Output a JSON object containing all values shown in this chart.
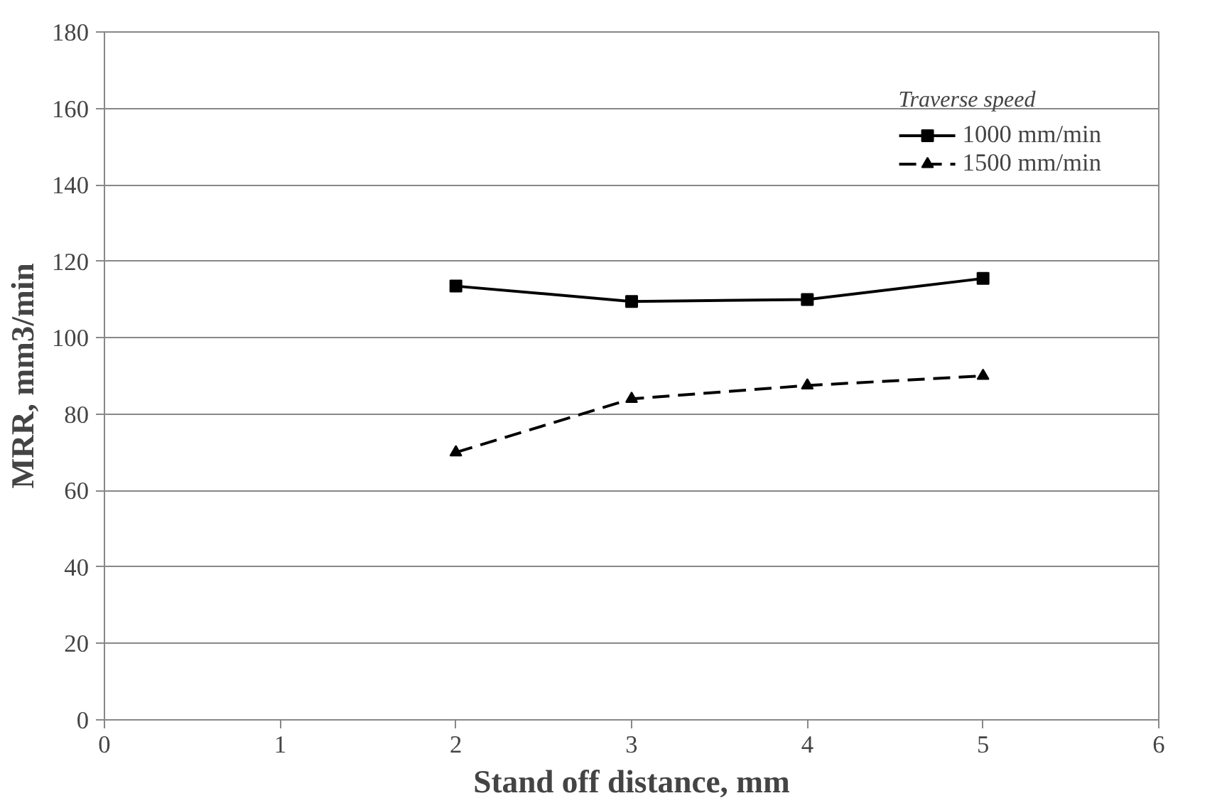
{
  "chart_data": {
    "type": "line",
    "xlabel": "Stand off distance, mm",
    "ylabel": "MRR, mm3/min",
    "legend_title": "Traverse speed",
    "x": [
      2,
      3,
      4,
      5
    ],
    "series": [
      {
        "name": "1000 mm/min",
        "color": "#000000",
        "values": [
          113.5,
          109.5,
          110,
          115.5
        ],
        "marker": "square",
        "line_style": "solid"
      },
      {
        "name": "1500 mm/min",
        "color": "#000000",
        "values": [
          70,
          84,
          87.5,
          90
        ],
        "marker": "triangle",
        "line_style": "dashed"
      }
    ],
    "xlim": [
      0,
      6
    ],
    "xticks": [
      0,
      1,
      2,
      3,
      4,
      5,
      6
    ],
    "ylim": [
      0,
      180
    ],
    "yticks": [
      0,
      20,
      40,
      60,
      80,
      100,
      120,
      140,
      160,
      180
    ],
    "grid": "y",
    "legend": "top right"
  }
}
